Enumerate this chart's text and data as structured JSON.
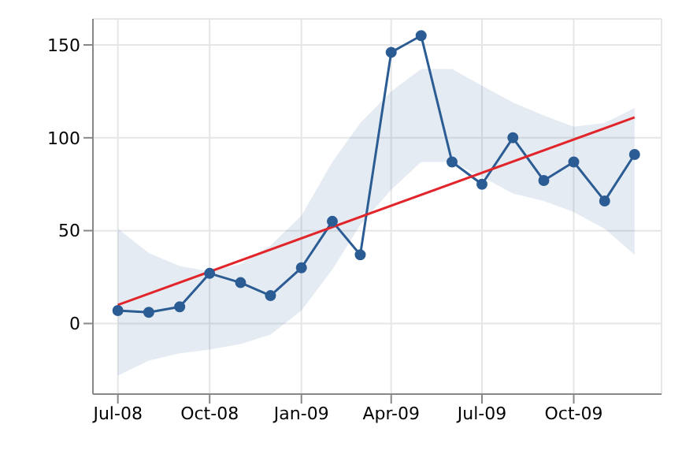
{
  "chart_data": {
    "type": "line",
    "x": [
      "2008-07",
      "2008-08",
      "2008-09",
      "2008-10",
      "2008-11",
      "2008-12",
      "2009-01",
      "2009-02",
      "2009-03",
      "2009-04",
      "2009-05",
      "2009-06",
      "2009-07",
      "2009-08",
      "2009-09",
      "2009-10",
      "2009-11",
      "2009-12"
    ],
    "series": [
      {
        "color": "#2b5c94",
        "marker": "circle",
        "values": [
          7,
          6,
          9,
          27,
          22,
          15,
          30,
          55,
          37,
          146,
          155,
          87,
          75,
          100,
          77,
          87,
          66,
          91
        ],
        "lower": [
          -28,
          -20,
          -16,
          -14,
          -11,
          -6,
          7,
          29,
          53,
          72,
          87,
          87,
          79,
          70,
          66,
          60,
          51,
          37
        ],
        "upper": [
          51,
          38,
          31,
          28,
          32,
          42,
          58,
          87,
          108,
          125,
          137,
          137,
          128,
          119,
          112,
          106,
          108,
          116
        ]
      },
      {
        "type": "line",
        "color": "#e0262b",
        "marker": "none",
        "x": [
          "2008-07",
          "2009-12"
        ],
        "values": [
          10,
          111
        ]
      }
    ],
    "xlim": [
      "2008-06-06",
      "2009-12-28"
    ],
    "xticks": [
      {
        "value": "2008-07",
        "label": "Jul-08"
      },
      {
        "value": "2008-10",
        "label": "Oct-08"
      },
      {
        "value": "2009-01",
        "label": "Jan-09"
      },
      {
        "value": "2009-04",
        "label": "Apr-09"
      },
      {
        "value": "2009-07",
        "label": "Jul-09"
      },
      {
        "value": "2009-10",
        "label": "Oct-09"
      }
    ],
    "ylim": [
      -38,
      164
    ],
    "yticks": [
      0,
      50,
      100,
      150
    ],
    "grid": true,
    "legend": false
  }
}
